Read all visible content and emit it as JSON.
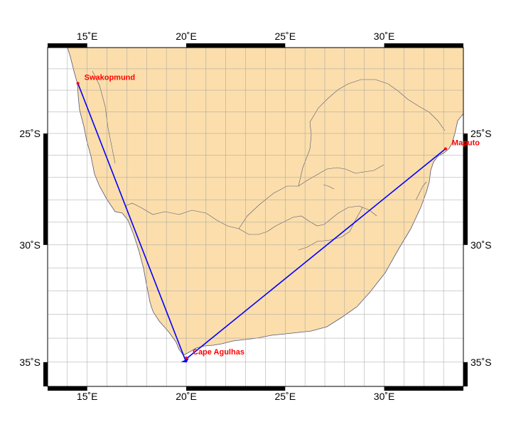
{
  "map": {
    "projection": "mercator",
    "lon_range": [
      13,
      34
    ],
    "lat_range": [
      -36,
      -21
    ],
    "colors": {
      "land": "#fbdeab",
      "ocean": "#ffffff",
      "coast": "#555577",
      "grid": "#a0a0a0",
      "route": "#0000ff",
      "label": "#ff0000",
      "frame": "#000000"
    },
    "lon_ticks": [
      {
        "value": 15,
        "label": "15˚E"
      },
      {
        "value": 20,
        "label": "20˚E"
      },
      {
        "value": 25,
        "label": "25˚E"
      },
      {
        "value": 30,
        "label": "30˚E"
      }
    ],
    "lat_ticks": [
      {
        "value": -25,
        "label": "25˚S"
      },
      {
        "value": -30,
        "label": "30˚S"
      },
      {
        "value": -35,
        "label": "35˚S"
      }
    ],
    "places": [
      {
        "name": "Swakopmund",
        "lon": 14.53,
        "lat": -22.68
      },
      {
        "name": "Cape Agulhas",
        "lon": 20.0,
        "lat": -34.83
      },
      {
        "name": "Maputo",
        "lon": 33.1,
        "lat": -25.7
      }
    ],
    "route": [
      {
        "lon": 14.53,
        "lat": -22.68
      },
      {
        "lon": 19.95,
        "lat": -34.9
      },
      {
        "lon": 33.1,
        "lat": -25.7
      }
    ]
  }
}
